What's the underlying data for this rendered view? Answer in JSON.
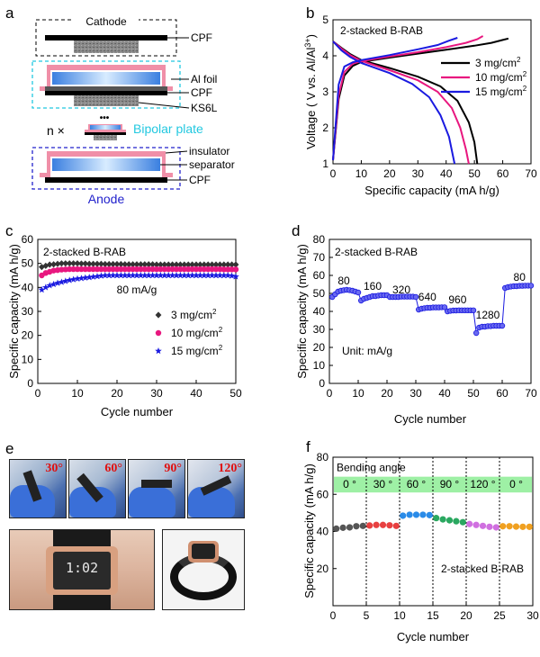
{
  "panels": {
    "a": {
      "letter": "a",
      "labels": {
        "cathode": "Cathode",
        "cpf_top": "CPF",
        "al_foil": "Al foil",
        "cpf_mid": "CPF",
        "ks6l": "KS6L",
        "n_times": "n ×",
        "dots": "•••",
        "bipolar": "Bipolar plate",
        "insulator": "insulator",
        "separator": "separator",
        "anode": "Anode",
        "cpf_bottom": "CPF"
      },
      "colors": {
        "bipolar": "#22c8e0",
        "anode": "#2222cc",
        "pink": "#f08fa8",
        "blue": "#3a8de0"
      }
    },
    "e": {
      "letter": "e",
      "angles": [
        "30°",
        "60°",
        "90°",
        "120°"
      ],
      "watch_time": "1:02"
    }
  },
  "chart_data": [
    {
      "id": "b",
      "letter": "b",
      "type": "line",
      "annotation": "2-stacked B-RAB",
      "xlabel": "Specific capacity (mA h/g)",
      "ylabel": "Voltage ( V vs. Al/Al",
      "ylabel_sup": "3+",
      "ylabel_end": ")",
      "xlim": [
        0,
        70
      ],
      "ylim": [
        1,
        5
      ],
      "xticks": [
        "0",
        "10",
        "20",
        "30",
        "40",
        "50",
        "60",
        "70"
      ],
      "yticks": [
        "1",
        "2",
        "3",
        "4",
        "5"
      ],
      "legend": "right",
      "series": [
        {
          "name": "3 mg/cm",
          "name_sup": "2",
          "color": "#000000",
          "charge": [
            [
              0,
              1.1
            ],
            [
              2,
              2.8
            ],
            [
              4,
              3.45
            ],
            [
              7,
              3.72
            ],
            [
              10,
              3.83
            ],
            [
              20,
              3.95
            ],
            [
              30,
              4.06
            ],
            [
              40,
              4.17
            ],
            [
              50,
              4.28
            ],
            [
              56,
              4.36
            ],
            [
              60,
              4.44
            ],
            [
              62,
              4.48
            ]
          ],
          "discharge": [
            [
              0,
              4.4
            ],
            [
              3,
              4.22
            ],
            [
              6,
              4.05
            ],
            [
              10,
              3.88
            ],
            [
              20,
              3.66
            ],
            [
              30,
              3.42
            ],
            [
              38,
              3.15
            ],
            [
              44,
              2.75
            ],
            [
              48,
              2.15
            ],
            [
              50,
              1.6
            ],
            [
              51,
              1.0
            ]
          ]
        },
        {
          "name": "10 mg/cm",
          "name_sup": "2",
          "color": "#e8177f",
          "charge": [
            [
              0,
              1.1
            ],
            [
              2,
              2.9
            ],
            [
              4,
              3.55
            ],
            [
              7,
              3.78
            ],
            [
              10,
              3.85
            ],
            [
              20,
              3.98
            ],
            [
              30,
              4.1
            ],
            [
              40,
              4.24
            ],
            [
              47,
              4.36
            ],
            [
              51,
              4.46
            ],
            [
              53,
              4.55
            ]
          ],
          "discharge": [
            [
              0,
              4.4
            ],
            [
              3,
              4.2
            ],
            [
              6,
              4.02
            ],
            [
              10,
              3.86
            ],
            [
              20,
              3.6
            ],
            [
              30,
              3.32
            ],
            [
              37,
              3.0
            ],
            [
              42,
              2.55
            ],
            [
              45,
              2.0
            ],
            [
              47,
              1.4
            ],
            [
              48,
              1.0
            ]
          ]
        },
        {
          "name": "15 mg/cm",
          "name_sup": "2",
          "color": "#1a1ae0",
          "charge": [
            [
              0,
              1.1
            ],
            [
              2,
              3.2
            ],
            [
              4,
              3.7
            ],
            [
              7,
              3.82
            ],
            [
              10,
              3.88
            ],
            [
              20,
              4.02
            ],
            [
              30,
              4.18
            ],
            [
              37,
              4.3
            ],
            [
              41,
              4.42
            ],
            [
              44,
              4.5
            ]
          ],
          "discharge": [
            [
              0,
              4.4
            ],
            [
              3,
              4.15
            ],
            [
              6,
              3.97
            ],
            [
              10,
              3.8
            ],
            [
              20,
              3.52
            ],
            [
              28,
              3.22
            ],
            [
              34,
              2.85
            ],
            [
              38,
              2.35
            ],
            [
              41,
              1.75
            ],
            [
              43,
              1.0
            ]
          ]
        }
      ]
    },
    {
      "id": "c",
      "letter": "c",
      "type": "scatter",
      "annotation": "2-stacked B-RAB",
      "rate_label": "80 mA/g",
      "xlabel": "Cycle number",
      "ylabel": "Specific capacity (mA h/g)",
      "xlim": [
        0,
        50
      ],
      "ylim": [
        0,
        60
      ],
      "xticks": [
        "0",
        "10",
        "20",
        "30",
        "40",
        "50"
      ],
      "yticks": [
        "0",
        "10",
        "20",
        "30",
        "40",
        "50",
        "60"
      ],
      "legend": "lower-right",
      "series": [
        {
          "name": "3  mg/cm",
          "name_sup": "2",
          "color": "#333333",
          "marker": "diamond",
          "values": [
            48.5,
            49,
            49.5,
            49.6,
            49.8,
            50,
            50,
            50,
            50,
            50,
            49.9,
            49.9,
            49.8,
            49.8,
            49.8,
            49.8,
            49.7,
            49.7,
            49.7,
            49.7,
            49.7,
            49.6,
            49.6,
            49.6,
            49.6,
            49.6,
            49.6,
            49.6,
            49.6,
            49.5,
            49.5,
            49.5,
            49.5,
            49.5,
            49.5,
            49.5,
            49.5,
            49.5,
            49.5,
            49.5,
            49.5,
            49.5,
            49.5,
            49.5,
            49.5,
            49.5,
            49.5,
            49.5,
            49.5,
            49.5
          ]
        },
        {
          "name": "10 mg/cm",
          "name_sup": "2",
          "color": "#e8177f",
          "marker": "circle",
          "values": [
            45,
            46,
            46.5,
            47,
            47.2,
            47.4,
            47.5,
            47.6,
            47.6,
            47.6,
            47.6,
            47.6,
            47.6,
            47.6,
            47.6,
            47.6,
            47.6,
            47.6,
            47.6,
            47.6,
            47.6,
            47.6,
            47.6,
            47.6,
            47.6,
            47.6,
            47.6,
            47.6,
            47.6,
            47.6,
            47.6,
            47.6,
            47.6,
            47.6,
            47.6,
            47.6,
            47.6,
            47.6,
            47.6,
            47.6,
            47.6,
            47.6,
            47.6,
            47.6,
            47.6,
            47.6,
            47.5,
            47.5,
            47.5,
            47.5
          ]
        },
        {
          "name": "15 mg/cm",
          "name_sup": "2",
          "color": "#1a1ae0",
          "marker": "star",
          "values": [
            39,
            40,
            40.8,
            41.3,
            41.8,
            42.2,
            42.6,
            43,
            43.3,
            43.6,
            43.8,
            44,
            44.2,
            44.4,
            44.6,
            44.8,
            45,
            45,
            45,
            45,
            45,
            45,
            45,
            45,
            45,
            45,
            45,
            45,
            45,
            45,
            45,
            45,
            45,
            45,
            45,
            45,
            45,
            45,
            45,
            45,
            45,
            45,
            45,
            45,
            45,
            45,
            45,
            45,
            44.8,
            44.5
          ]
        }
      ]
    },
    {
      "id": "d",
      "letter": "d",
      "type": "scatter",
      "annotation": "2-stacked B-RAB",
      "unit_label": "Unit: mA/g",
      "xlabel": "Cycle number",
      "ylabel": "Specific capacity (mA h/g)",
      "xlim": [
        0,
        70
      ],
      "ylim": [
        0,
        80
      ],
      "xticks": [
        "0",
        "10",
        "20",
        "30",
        "40",
        "50",
        "60",
        "70"
      ],
      "yticks": [
        "0",
        "10",
        "20",
        "30",
        "40",
        "50",
        "60",
        "70",
        "80"
      ],
      "color": "#1a1ae0",
      "rate_labels": [
        {
          "text": "80",
          "x": 5,
          "y": 55
        },
        {
          "text": "160",
          "x": 15,
          "y": 52
        },
        {
          "text": "320",
          "x": 25,
          "y": 50
        },
        {
          "text": "640",
          "x": 34,
          "y": 46
        },
        {
          "text": "960",
          "x": 44.5,
          "y": 44.5
        },
        {
          "text": "1280",
          "x": 55,
          "y": 36
        },
        {
          "text": "80",
          "x": 66,
          "y": 57
        }
      ],
      "values": [
        48,
        49.5,
        51,
        51.5,
        51.8,
        52,
        51.8,
        51.5,
        51,
        50.5,
        46,
        47,
        47.5,
        48,
        48.5,
        48.5,
        48.8,
        49,
        49,
        49,
        48,
        48,
        48,
        48,
        48.2,
        48.2,
        48.2,
        48.2,
        48.2,
        48,
        41,
        41.5,
        41.8,
        42,
        42,
        42.2,
        42.2,
        42.2,
        42.3,
        42.3,
        40,
        40.3,
        40.5,
        40.5,
        40.6,
        40.6,
        40.6,
        40.6,
        40.6,
        40.6,
        28,
        31,
        31.5,
        31.5,
        31.8,
        31.8,
        32,
        32,
        32,
        32,
        53,
        53.5,
        53.8,
        54,
        54,
        54.2,
        54.2,
        54.3,
        54.3,
        54.3
      ]
    },
    {
      "id": "f",
      "letter": "f",
      "type": "scatter",
      "annotation": "2-stacked B-RAB",
      "band_title": "Bending angle",
      "band_color": "#9ef0a5",
      "xlabel": "Cycle number",
      "ylabel": "Specific capacity (mA h/g)",
      "xlim": [
        0,
        30
      ],
      "ylim": [
        0,
        80
      ],
      "xticks": [
        "0",
        "5",
        "10",
        "15",
        "20",
        "25",
        "30"
      ],
      "yticks": [
        "20",
        "40",
        "60",
        "80"
      ],
      "segments": [
        {
          "label": "0 °",
          "color": "#555555",
          "values": [
            41.5,
            42,
            42.2,
            42.8,
            43
          ]
        },
        {
          "label": "30 °",
          "color": "#e84040",
          "values": [
            43.2,
            43.5,
            43.5,
            43.3,
            43
          ]
        },
        {
          "label": "60 °",
          "color": "#2a8be8",
          "values": [
            48.5,
            49,
            49,
            49,
            48.8
          ]
        },
        {
          "label": "90 °",
          "color": "#2aa860",
          "values": [
            47.2,
            46.5,
            46,
            45.5,
            45
          ]
        },
        {
          "label": "120 °",
          "color": "#d070e0",
          "values": [
            44,
            43.5,
            43,
            42.5,
            42.2
          ]
        },
        {
          "label": "0 °",
          "color": "#f0a020",
          "values": [
            42.8,
            42.8,
            42.6,
            42.5,
            42.5
          ]
        }
      ]
    }
  ]
}
